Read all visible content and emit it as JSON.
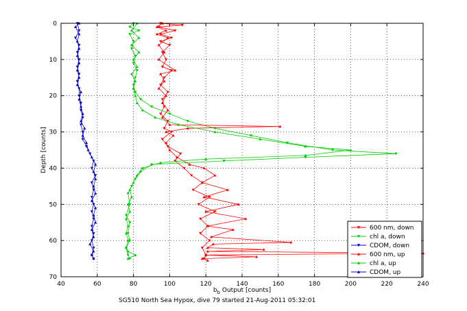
{
  "chart_data": {
    "type": "line",
    "title": "",
    "caption": "SG510 North Sea Hypox, dive 79 started 21-Aug-2011 05:32:01",
    "xlabel_main": "b",
    "xlabel_sub": "b",
    "xlabel_rest": " Output [counts]",
    "ylabel": "Depth [counts]",
    "xlim": [
      40,
      240
    ],
    "ylim": [
      0,
      70
    ],
    "y_reversed": true,
    "grid": true,
    "legend_position": "bottom-right",
    "xticks": [
      "40",
      "60",
      "80",
      "100",
      "120",
      "140",
      "160",
      "180",
      "200",
      "220",
      "240"
    ],
    "yticks": [
      "0",
      "10",
      "20",
      "30",
      "40",
      "50",
      "60",
      "70"
    ],
    "series": [
      {
        "name": "600 nm, down",
        "color": "#ff0000",
        "marker": "triangle-down",
        "points": [
          [
            95,
            0
          ],
          [
            107,
            0.5
          ],
          [
            94,
            1
          ],
          [
            103,
            2
          ],
          [
            95,
            3
          ],
          [
            101,
            4
          ],
          [
            95,
            5
          ],
          [
            100,
            6
          ],
          [
            96,
            8
          ],
          [
            98,
            10
          ],
          [
            96,
            12
          ],
          [
            101,
            13
          ],
          [
            97,
            15
          ],
          [
            95,
            17
          ],
          [
            99,
            19
          ],
          [
            96,
            21
          ],
          [
            97,
            23
          ],
          [
            95,
            25
          ],
          [
            99,
            27
          ],
          [
            97,
            29
          ],
          [
            101,
            30
          ],
          [
            96,
            32
          ],
          [
            99,
            34
          ],
          [
            106,
            36
          ],
          [
            103,
            38
          ],
          [
            108,
            40
          ],
          [
            112,
            42
          ],
          [
            118,
            44
          ],
          [
            113,
            46
          ],
          [
            122,
            48
          ],
          [
            116,
            50
          ],
          [
            125,
            52
          ],
          [
            117,
            54
          ],
          [
            121,
            56
          ],
          [
            117,
            58
          ],
          [
            122,
            60
          ],
          [
            118,
            62
          ],
          [
            120,
            64
          ],
          [
            119,
            65
          ]
        ]
      },
      {
        "name": "chl a, down",
        "color": "#00cc00",
        "marker": "triangle-down",
        "points": [
          [
            80,
            0
          ],
          [
            78,
            1
          ],
          [
            83,
            2
          ],
          [
            78,
            3
          ],
          [
            80,
            5
          ],
          [
            79,
            7
          ],
          [
            81,
            9
          ],
          [
            80,
            11
          ],
          [
            82,
            13
          ],
          [
            81,
            15
          ],
          [
            80,
            17
          ],
          [
            81,
            19
          ],
          [
            84,
            21
          ],
          [
            90,
            23
          ],
          [
            100,
            25
          ],
          [
            110,
            27
          ],
          [
            125,
            29
          ],
          [
            145,
            31
          ],
          [
            165,
            33
          ],
          [
            190,
            35
          ],
          [
            225,
            36
          ],
          [
            175,
            37
          ],
          [
            130,
            38
          ],
          [
            90,
            39
          ],
          [
            84,
            41
          ],
          [
            81,
            43
          ],
          [
            79,
            45
          ],
          [
            77,
            47
          ],
          [
            78,
            50
          ],
          [
            76,
            53
          ],
          [
            78,
            55
          ],
          [
            77,
            58
          ],
          [
            78,
            60
          ],
          [
            76,
            62
          ],
          [
            77,
            64
          ],
          [
            78,
            65
          ]
        ]
      },
      {
        "name": "CDOM, down",
        "color": "#0000cc",
        "marker": "triangle-down",
        "points": [
          [
            49,
            0
          ],
          [
            50,
            2
          ],
          [
            48,
            4
          ],
          [
            50,
            6
          ],
          [
            49,
            8
          ],
          [
            50,
            10
          ],
          [
            49,
            12
          ],
          [
            50,
            14
          ],
          [
            49,
            16
          ],
          [
            50,
            18
          ],
          [
            50,
            20
          ],
          [
            51,
            22
          ],
          [
            51,
            24
          ],
          [
            52,
            26
          ],
          [
            51,
            28
          ],
          [
            52,
            30
          ],
          [
            52,
            32
          ],
          [
            54,
            34
          ],
          [
            56,
            36
          ],
          [
            58,
            38
          ],
          [
            57,
            40
          ],
          [
            59,
            42
          ],
          [
            57,
            44
          ],
          [
            58,
            46
          ],
          [
            57,
            48
          ],
          [
            58,
            50
          ],
          [
            57,
            52
          ],
          [
            58,
            54
          ],
          [
            57,
            56
          ],
          [
            58,
            58
          ],
          [
            57,
            60
          ],
          [
            58,
            62
          ],
          [
            57,
            64
          ],
          [
            58,
            65
          ]
        ]
      },
      {
        "name": "600 nm, up",
        "color": "#ff0000",
        "marker": "triangle-up",
        "points": [
          [
            96,
            0
          ],
          [
            93,
            1
          ],
          [
            98,
            2
          ],
          [
            93,
            3
          ],
          [
            99,
            4
          ],
          [
            94,
            6
          ],
          [
            97,
            8
          ],
          [
            94,
            10
          ],
          [
            103,
            13
          ],
          [
            95,
            14
          ],
          [
            97,
            16
          ],
          [
            94,
            18
          ],
          [
            98,
            20
          ],
          [
            96,
            22
          ],
          [
            99,
            24
          ],
          [
            96,
            26
          ],
          [
            100,
            28
          ],
          [
            161,
            28.5
          ],
          [
            110,
            29
          ],
          [
            98,
            30
          ],
          [
            102,
            31
          ],
          [
            98,
            33
          ],
          [
            100,
            35
          ],
          [
            104,
            37
          ],
          [
            111,
            39
          ],
          [
            119,
            40
          ],
          [
            125,
            42
          ],
          [
            118,
            44
          ],
          [
            132,
            46
          ],
          [
            119,
            48
          ],
          [
            138,
            50
          ],
          [
            120,
            52
          ],
          [
            142,
            54
          ],
          [
            121,
            56
          ],
          [
            135,
            57
          ],
          [
            123,
            59
          ],
          [
            167,
            60.5
          ],
          [
            124,
            61
          ],
          [
            121,
            62
          ],
          [
            152,
            62.5
          ],
          [
            121,
            63
          ],
          [
            240,
            63.5
          ],
          [
            120,
            64
          ],
          [
            148,
            64.5
          ],
          [
            118,
            65
          ],
          [
            121,
            65.5
          ]
        ]
      },
      {
        "name": "chl a, up",
        "color": "#00cc00",
        "marker": "triangle-up",
        "points": [
          [
            82,
            0
          ],
          [
            79,
            2
          ],
          [
            83,
            4
          ],
          [
            79,
            6
          ],
          [
            83,
            8
          ],
          [
            80,
            10
          ],
          [
            82,
            12
          ],
          [
            79,
            14
          ],
          [
            81,
            16
          ],
          [
            80,
            18
          ],
          [
            81,
            20
          ],
          [
            82,
            22
          ],
          [
            85,
            24
          ],
          [
            92,
            26
          ],
          [
            105,
            28
          ],
          [
            125,
            30
          ],
          [
            150,
            32
          ],
          [
            175,
            34
          ],
          [
            200,
            35
          ],
          [
            175,
            36.5
          ],
          [
            120,
            37.5
          ],
          [
            95,
            38.5
          ],
          [
            85,
            40
          ],
          [
            82,
            42
          ],
          [
            80,
            44
          ],
          [
            78,
            46
          ],
          [
            79,
            48
          ],
          [
            77,
            50
          ],
          [
            78,
            52
          ],
          [
            76,
            54
          ],
          [
            77,
            56
          ],
          [
            76,
            58
          ],
          [
            77,
            60
          ],
          [
            76,
            62
          ],
          [
            77,
            63
          ],
          [
            81,
            64
          ],
          [
            77,
            65
          ]
        ]
      },
      {
        "name": "CDOM, up",
        "color": "#0000cc",
        "marker": "triangle-up",
        "points": [
          [
            50,
            0
          ],
          [
            48,
            1
          ],
          [
            50,
            3
          ],
          [
            49,
            5
          ],
          [
            50,
            7
          ],
          [
            49,
            9
          ],
          [
            50,
            11
          ],
          [
            49,
            13
          ],
          [
            50,
            15
          ],
          [
            49,
            17
          ],
          [
            51,
            19
          ],
          [
            50,
            21
          ],
          [
            51,
            23
          ],
          [
            52,
            25
          ],
          [
            51,
            27
          ],
          [
            53,
            29
          ],
          [
            52,
            31
          ],
          [
            54,
            33
          ],
          [
            55,
            35
          ],
          [
            57,
            37
          ],
          [
            59,
            39
          ],
          [
            58,
            41
          ],
          [
            59,
            43
          ],
          [
            58,
            45
          ],
          [
            59,
            47
          ],
          [
            57,
            49
          ],
          [
            59,
            51
          ],
          [
            58,
            53
          ],
          [
            59,
            55
          ],
          [
            57,
            57
          ],
          [
            58,
            59
          ],
          [
            56,
            61
          ],
          [
            58,
            63
          ],
          [
            57,
            64
          ],
          [
            58,
            65
          ]
        ]
      }
    ]
  }
}
